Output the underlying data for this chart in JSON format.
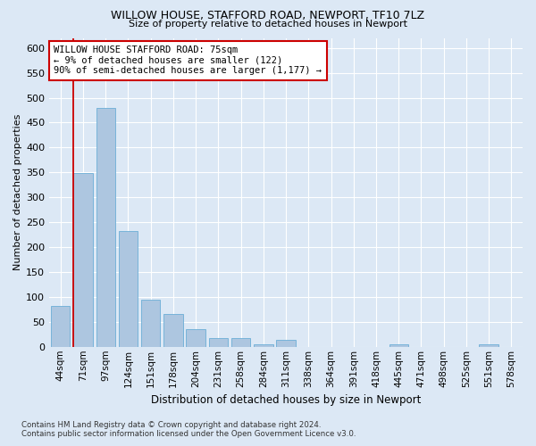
{
  "title_line1": "WILLOW HOUSE, STAFFORD ROAD, NEWPORT, TF10 7LZ",
  "title_line2": "Size of property relative to detached houses in Newport",
  "xlabel": "Distribution of detached houses by size in Newport",
  "ylabel": "Number of detached properties",
  "footnote": "Contains HM Land Registry data © Crown copyright and database right 2024.\nContains public sector information licensed under the Open Government Licence v3.0.",
  "bar_labels": [
    "44sqm",
    "71sqm",
    "97sqm",
    "124sqm",
    "151sqm",
    "178sqm",
    "204sqm",
    "231sqm",
    "258sqm",
    "284sqm",
    "311sqm",
    "338sqm",
    "364sqm",
    "391sqm",
    "418sqm",
    "445sqm",
    "471sqm",
    "498sqm",
    "525sqm",
    "551sqm",
    "578sqm"
  ],
  "bar_values": [
    82,
    348,
    480,
    232,
    95,
    65,
    35,
    17,
    18,
    5,
    14,
    0,
    0,
    0,
    0,
    5,
    0,
    0,
    0,
    5,
    0
  ],
  "bar_color": "#adc6e0",
  "bar_edgecolor": "#6baed6",
  "vline_index": 1,
  "vline_color": "#cc0000",
  "ylim": [
    0,
    620
  ],
  "yticks": [
    0,
    50,
    100,
    150,
    200,
    250,
    300,
    350,
    400,
    450,
    500,
    550,
    600
  ],
  "annotation_text": "WILLOW HOUSE STAFFORD ROAD: 75sqm\n← 9% of detached houses are smaller (122)\n90% of semi-detached houses are larger (1,177) →",
  "annotation_box_facecolor": "#ffffff",
  "annotation_box_edgecolor": "#cc0000",
  "bg_color": "#dce8f5",
  "plot_bg_color": "#dce8f5"
}
